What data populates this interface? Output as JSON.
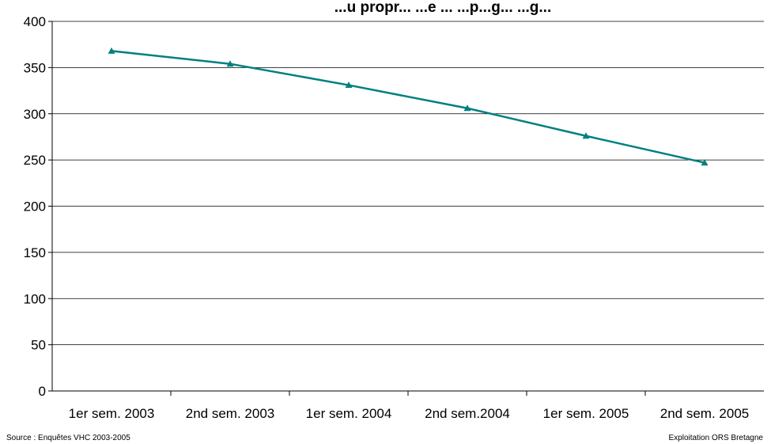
{
  "chart_data": {
    "type": "line",
    "title": "...u propr... ...e ... ...p...g... ...g...",
    "xlabel": "",
    "ylabel": "",
    "categories": [
      "1er sem. 2003",
      "2nd sem. 2003",
      "1er sem. 2004",
      "2nd sem.2004",
      "1er sem. 2005",
      "2nd sem. 2005"
    ],
    "series": [
      {
        "values": [
          368,
          354,
          331,
          306,
          276,
          247
        ]
      }
    ],
    "ylim": [
      0,
      400
    ],
    "yticks": [
      0,
      50,
      100,
      150,
      200,
      250,
      300,
      350,
      400
    ],
    "grid": true,
    "legend": "none",
    "line_color": "#008080",
    "grid_color": "#000000"
  },
  "footer": {
    "source": "Source : Enquêtes VHC 2003-2005",
    "credit": "Exploitation ORS Bretagne"
  }
}
